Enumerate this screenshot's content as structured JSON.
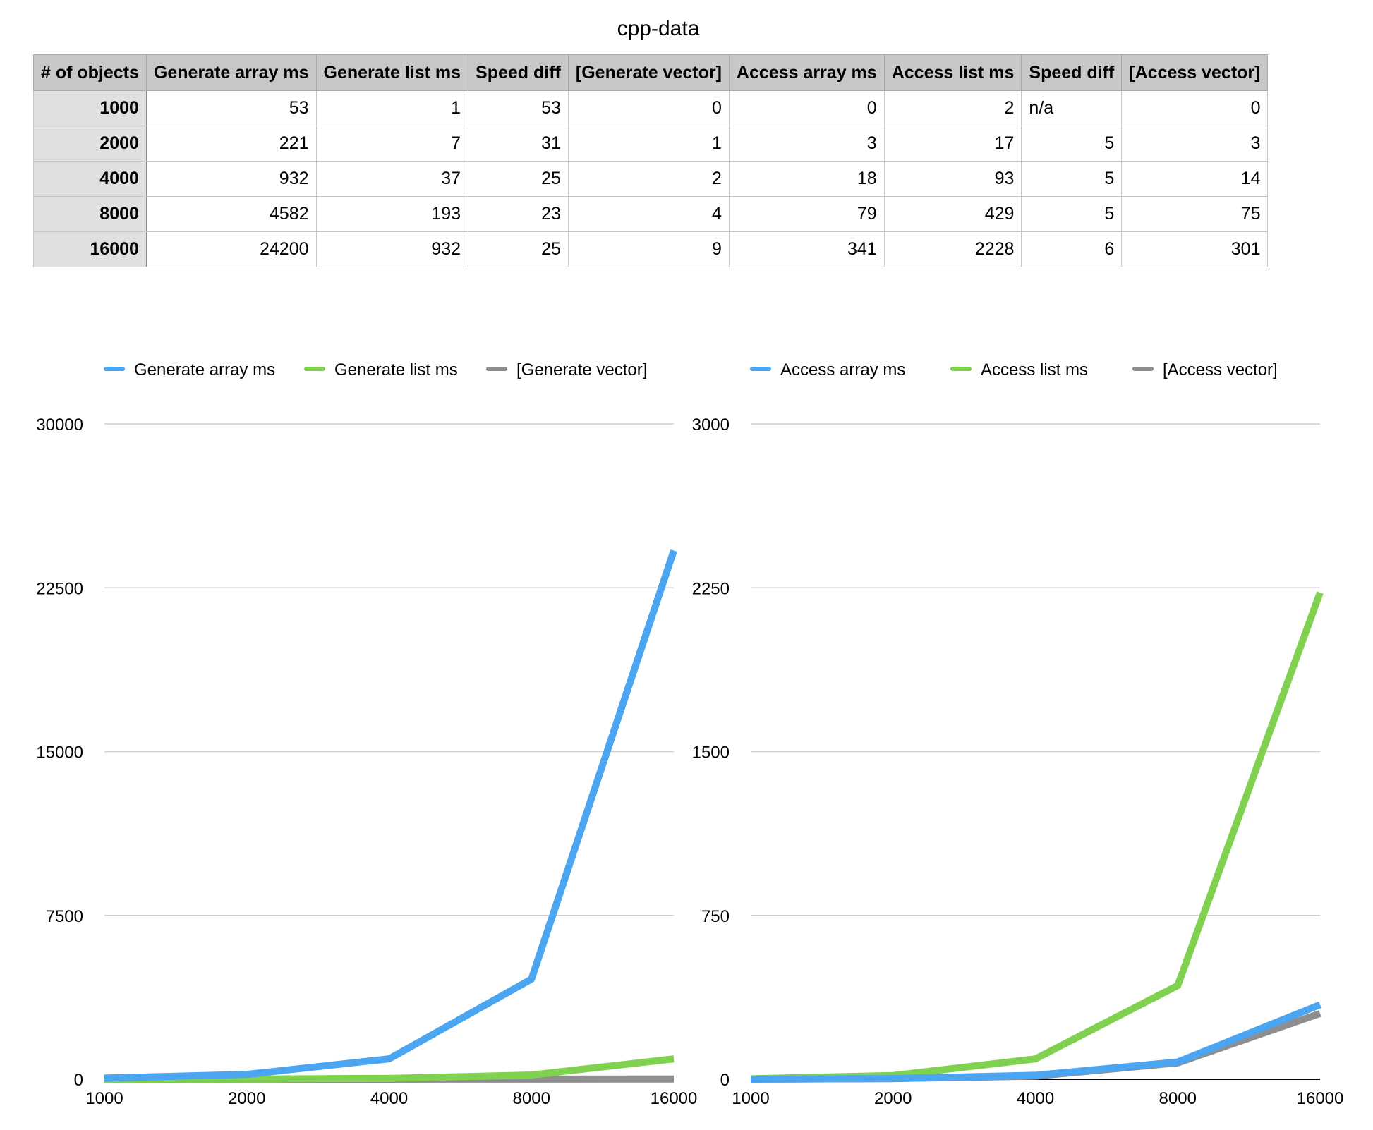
{
  "sheet": {
    "title": "cpp-data",
    "headers": [
      "# of objects",
      "Generate array ms",
      "Generate list ms",
      "Speed diff",
      "[Generate vector]",
      "Access array ms",
      "Access list ms",
      "Speed diff",
      "[Access vector]"
    ],
    "rows": [
      [
        "1000",
        "53",
        "1",
        "53",
        "0",
        "0",
        "2",
        "n/a",
        "0"
      ],
      [
        "2000",
        "221",
        "7",
        "31",
        "1",
        "3",
        "17",
        "5",
        "3"
      ],
      [
        "4000",
        "932",
        "37",
        "25",
        "2",
        "18",
        "93",
        "5",
        "14"
      ],
      [
        "8000",
        "4582",
        "193",
        "23",
        "4",
        "79",
        "429",
        "5",
        "75"
      ],
      [
        "16000",
        "24200",
        "932",
        "25",
        "9",
        "341",
        "2228",
        "6",
        "301"
      ]
    ]
  },
  "chart_data": [
    {
      "type": "line",
      "categories": [
        "1000",
        "2000",
        "4000",
        "8000",
        "16000"
      ],
      "series": [
        {
          "name": "Generate array ms",
          "values": [
            53,
            221,
            932,
            4582,
            24200
          ],
          "color": "#4ca5f0"
        },
        {
          "name": "Generate list ms",
          "values": [
            1,
            7,
            37,
            193,
            932
          ],
          "color": "#7fd14f"
        },
        {
          "name": "[Generate vector]",
          "values": [
            0,
            1,
            2,
            4,
            9
          ],
          "color": "#8e8e8e"
        }
      ],
      "ylim": [
        0,
        30000
      ],
      "yticks": [
        "0",
        "7500",
        "15000",
        "22500",
        "30000"
      ],
      "grid": true,
      "legend": "top"
    },
    {
      "type": "line",
      "categories": [
        "1000",
        "2000",
        "4000",
        "8000",
        "16000"
      ],
      "series": [
        {
          "name": "Access array ms",
          "values": [
            0,
            3,
            18,
            79,
            341
          ],
          "color": "#4ca5f0"
        },
        {
          "name": "Access list ms",
          "values": [
            2,
            17,
            93,
            429,
            2228
          ],
          "color": "#7fd14f"
        },
        {
          "name": "[Access vector]",
          "values": [
            0,
            3,
            14,
            75,
            301
          ],
          "color": "#8e8e8e"
        }
      ],
      "ylim": [
        0,
        3000
      ],
      "yticks": [
        "0",
        "750",
        "1500",
        "2250",
        "3000"
      ],
      "grid": true,
      "legend": "top"
    }
  ]
}
